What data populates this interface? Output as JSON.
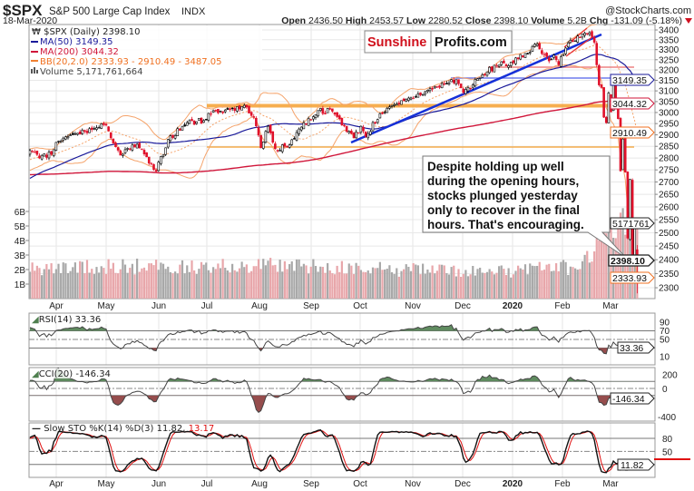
{
  "header": {
    "symbol": "$SPX",
    "name": "S&P 500 Large Cap Index",
    "exchange": "INDX",
    "watermark": "@StockCharts.com",
    "date": "18-Mar-2020",
    "quote": {
      "open_label": "Open",
      "open": "2436.50",
      "high_label": "High",
      "high": "2453.57",
      "low_label": "Low",
      "low": "2280.52",
      "close_label": "Close",
      "close": "2398.10",
      "volume_label": "Volume",
      "volume": "5.2B",
      "chg_label": "Chg",
      "chg": "-131.09 (-5.18%)"
    }
  },
  "legend": {
    "price": "$SPX (Daily) 2398.10",
    "ma50": "MA(50) 3149.35",
    "ma200": "MA(200) 3044.32",
    "bb": "BB(20,2.0) 2333.93 - 2910.49 - 3487.05",
    "volume": "Volume 5,171,761,664"
  },
  "logo": {
    "part1": "Sunshine",
    "part2": "Profits.com"
  },
  "annotation": {
    "lines": [
      "Despite holding up well",
      "during the opening hours,",
      "stocks plunged yesterday",
      "only to recover in the final",
      "hours. That's encouraging."
    ]
  },
  "tags": {
    "ma50": "3149.35",
    "ma200": "3044.32",
    "bb_mid": "2910.49",
    "volume": "5171761",
    "close": "2398.10",
    "bb_low": "2333.93",
    "rsi": "33.36",
    "cci": "-146.34",
    "sto": "11.82"
  },
  "panels": {
    "rsi": {
      "label": "RSI(14) 33.36",
      "ticks": [
        "90",
        "70",
        "50",
        "10"
      ]
    },
    "cci": {
      "label": "CCI(20) -146.34",
      "ticks": [
        "200",
        "0",
        "-400"
      ]
    },
    "sto": {
      "label": "Slow STO %K(14) %D(3) 11.82,",
      "d_value": "13.17",
      "ticks": [
        "80",
        "50"
      ]
    }
  },
  "colors": {
    "up": "#000000",
    "down": "#e0102a",
    "ma50": "#1a1a9a",
    "ma200": "#d0163a",
    "bb": "#f5a36a",
    "vol_up": "#a8a8a8",
    "vol_down": "#e8a6aa",
    "pos_fill": "#4f7f4f",
    "neg_fill": "#8b3a3a",
    "band": "#f5a030",
    "trend": "#1530d8",
    "sto_d": "#e01010"
  },
  "chart_data": {
    "type": "candlestick",
    "title": "$SPX S&P 500 Large Cap Index INDX",
    "scale": "log",
    "ylim": [
      2280,
      3420
    ],
    "yticks": [
      "3400",
      "3350",
      "3300",
      "3250",
      "3200",
      "3150",
      "3100",
      "3050",
      "3000",
      "2950",
      "2900",
      "2850",
      "2800",
      "2750",
      "2700",
      "2650",
      "2600",
      "2550",
      "2500",
      "2450",
      "2400",
      "2350",
      "2300"
    ],
    "volume_ticks": [
      "6B",
      "5B",
      "4B",
      "3B",
      "2B",
      "1B"
    ],
    "x_labels": [
      "Apr",
      "May",
      "Jun",
      "Jul",
      "Aug",
      "Sep",
      "Oct",
      "Nov",
      "Dec",
      "2020",
      "Feb",
      "Mar"
    ],
    "last_bar": {
      "open": 2436.5,
      "high": 2453.57,
      "low": 2280.52,
      "close": 2398.1
    },
    "prehistory_close_anchors": [
      [
        -210,
        2720
      ],
      [
        -150,
        2900
      ],
      [
        -110,
        2760
      ],
      [
        -80,
        2640
      ],
      [
        -62,
        2400
      ],
      [
        -40,
        2640
      ],
      [
        -20,
        2750
      ]
    ],
    "close_anchors": [
      [
        0,
        2832
      ],
      [
        4,
        2800
      ],
      [
        9,
        2816
      ],
      [
        11,
        2867
      ],
      [
        20,
        2907
      ],
      [
        29,
        2933
      ],
      [
        31,
        2945
      ],
      [
        33,
        2917
      ],
      [
        38,
        2812
      ],
      [
        45,
        2859
      ],
      [
        52,
        2752
      ],
      [
        53,
        2744
      ],
      [
        58,
        2880
      ],
      [
        66,
        2954
      ],
      [
        73,
        2964
      ],
      [
        75,
        2996
      ],
      [
        83,
        3014
      ],
      [
        91,
        3025
      ],
      [
        94,
        2980
      ],
      [
        97,
        2844
      ],
      [
        100,
        2938
      ],
      [
        103,
        2840
      ],
      [
        108,
        2847
      ],
      [
        113,
        2926
      ],
      [
        121,
        3009
      ],
      [
        127,
        3006
      ],
      [
        136,
        2887
      ],
      [
        139,
        2938
      ],
      [
        141,
        2893
      ],
      [
        147,
        2995
      ],
      [
        155,
        3039
      ],
      [
        160,
        3067
      ],
      [
        171,
        3120
      ],
      [
        179,
        3153
      ],
      [
        182,
        3093
      ],
      [
        192,
        3191
      ],
      [
        198,
        3240
      ],
      [
        201,
        3221
      ],
      [
        203,
        3235
      ],
      [
        213,
        3329
      ],
      [
        218,
        3244
      ],
      [
        220,
        3273
      ],
      [
        222,
        3225
      ],
      [
        226,
        3334
      ],
      [
        232,
        3380
      ],
      [
        235,
        3386
      ],
      [
        237,
        3337
      ],
      [
        238,
        3225
      ],
      [
        239,
        3128
      ],
      [
        240,
        3116
      ],
      [
        241,
        2979
      ],
      [
        242,
        2954
      ],
      [
        243,
        3090
      ],
      [
        244,
        3003
      ],
      [
        245,
        3130
      ],
      [
        246,
        3023
      ],
      [
        247,
        2972
      ],
      [
        248,
        2746
      ],
      [
        249,
        2882
      ],
      [
        250,
        2741
      ],
      [
        251,
        2480
      ],
      [
        252,
        2711
      ],
      [
        253,
        2386
      ],
      [
        254,
        2529
      ],
      [
        255,
        2398.1
      ]
    ],
    "volume_anchors_billions": [
      [
        0,
        2.1
      ],
      [
        40,
        2.2
      ],
      [
        100,
        2.3
      ],
      [
        150,
        2.0
      ],
      [
        200,
        1.9
      ],
      [
        230,
        2.2
      ],
      [
        238,
        3.8
      ],
      [
        245,
        4.6
      ],
      [
        250,
        5.5
      ],
      [
        255,
        5.17
      ]
    ],
    "indicators": {
      "ma50": 3149.35,
      "ma200": 3044.32,
      "bb": {
        "lower": 2333.93,
        "mid": 2910.49,
        "upper": 3487.05
      },
      "rsi14": 33.36,
      "cci20": -146.34,
      "sto_k": 11.82,
      "sto_d": 13.17
    }
  }
}
